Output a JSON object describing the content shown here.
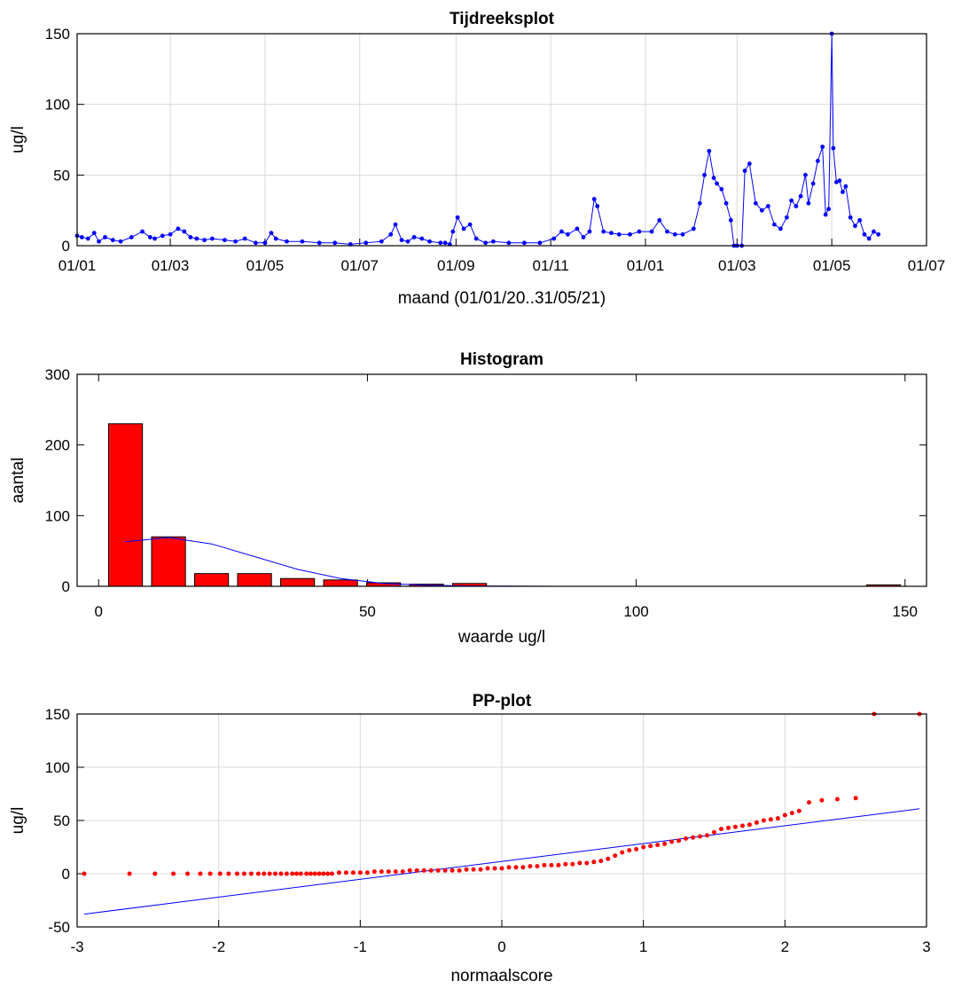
{
  "chart_data": [
    {
      "type": "line",
      "title": "Tijdreeksplot",
      "xlabel": "maand (01/01/20..31/05/21)",
      "ylabel": "ug/l",
      "x_tick_labels": [
        "01/01",
        "01/03",
        "01/05",
        "01/07",
        "01/09",
        "01/11",
        "01/01",
        "01/03",
        "01/05",
        "01/07"
      ],
      "y_ticks": [
        0,
        50,
        100,
        150
      ],
      "xlim": [
        "2020-01-01",
        "2021-07-01"
      ],
      "ylim": [
        0,
        150
      ],
      "grid": true,
      "series_color": "#0000ff",
      "series": [
        {
          "x": [
            "2020-01-01",
            "2020-01-04",
            "2020-01-08",
            "2020-01-12",
            "2020-01-15",
            "2020-01-19",
            "2020-01-24",
            "2020-01-29",
            "2020-02-05",
            "2020-02-12",
            "2020-02-17",
            "2020-02-20",
            "2020-02-25",
            "2020-03-01",
            "2020-03-06",
            "2020-03-10",
            "2020-03-14",
            "2020-03-18",
            "2020-03-23",
            "2020-03-28",
            "2020-04-05",
            "2020-04-12",
            "2020-04-18",
            "2020-04-25",
            "2020-05-01",
            "2020-05-05",
            "2020-05-08",
            "2020-05-15",
            "2020-05-25",
            "2020-06-05",
            "2020-06-15",
            "2020-06-25",
            "2020-07-05",
            "2020-07-15",
            "2020-07-21",
            "2020-07-24",
            "2020-07-28",
            "2020-08-01",
            "2020-08-05",
            "2020-08-10",
            "2020-08-15",
            "2020-08-22",
            "2020-08-25",
            "2020-08-28",
            "2020-08-30",
            "2020-09-02",
            "2020-09-06",
            "2020-09-10",
            "2020-09-14",
            "2020-09-20",
            "2020-09-25",
            "2020-10-05",
            "2020-10-15",
            "2020-10-25",
            "2020-11-03",
            "2020-11-08",
            "2020-11-12",
            "2020-11-18",
            "2020-11-22",
            "2020-11-26",
            "2020-11-29",
            "2020-12-01",
            "2020-12-05",
            "2020-12-10",
            "2020-12-15",
            "2020-12-22",
            "2020-12-28",
            "2021-01-05",
            "2021-01-10",
            "2021-01-15",
            "2021-01-20",
            "2021-01-25",
            "2021-02-01",
            "2021-02-05",
            "2021-02-08",
            "2021-02-11",
            "2021-02-14",
            "2021-02-16",
            "2021-02-19",
            "2021-02-22",
            "2021-02-25",
            "2021-02-27",
            "2021-03-01",
            "2021-03-04",
            "2021-03-06",
            "2021-03-09",
            "2021-03-13",
            "2021-03-17",
            "2021-03-21",
            "2021-03-25",
            "2021-03-29",
            "2021-04-02",
            "2021-04-05",
            "2021-04-08",
            "2021-04-11",
            "2021-04-14",
            "2021-04-16",
            "2021-04-19",
            "2021-04-22",
            "2021-04-25",
            "2021-04-27",
            "2021-04-29",
            "2021-05-01",
            "2021-05-02",
            "2021-05-04",
            "2021-05-06",
            "2021-05-08",
            "2021-05-10",
            "2021-05-13",
            "2021-05-16",
            "2021-05-19",
            "2021-05-22",
            "2021-05-25",
            "2021-05-28",
            "2021-05-31"
          ],
          "y": [
            7,
            6,
            5,
            9,
            3,
            6,
            4,
            3,
            6,
            10,
            6,
            5,
            7,
            8,
            12,
            10,
            6,
            5,
            4,
            5,
            4,
            3,
            5,
            2,
            2,
            9,
            5,
            3,
            3,
            2,
            2,
            1,
            2,
            3,
            8,
            15,
            4,
            3,
            6,
            5,
            3,
            2,
            2,
            1,
            10,
            20,
            12,
            15,
            5,
            2,
            3,
            2,
            2,
            2,
            5,
            10,
            8,
            12,
            6,
            10,
            33,
            28,
            10,
            9,
            8,
            8,
            10,
            10,
            18,
            10,
            8,
            8,
            12,
            30,
            50,
            67,
            48,
            44,
            40,
            30,
            18,
            0,
            0,
            0,
            53,
            58,
            30,
            25,
            28,
            15,
            12,
            20,
            32,
            28,
            35,
            50,
            30,
            44,
            60,
            70,
            22,
            26,
            150,
            69,
            45,
            46,
            38,
            42,
            20,
            14,
            18,
            8,
            5,
            10,
            8
          ]
        }
      ]
    },
    {
      "type": "bar",
      "title": "Histogram",
      "xlabel": "waarde ug/l",
      "ylabel": "aantal",
      "x_ticks": [
        0,
        50,
        100,
        150
      ],
      "y_ticks": [
        0,
        100,
        200,
        300
      ],
      "xlim": [
        -4,
        154
      ],
      "ylim": [
        0,
        300
      ],
      "grid": false,
      "bar_color": "#ff0000",
      "bin_centers": [
        5,
        13,
        21,
        29,
        37,
        45,
        53,
        61,
        69,
        146
      ],
      "bin_width": 6.3,
      "values": [
        230,
        70,
        18,
        18,
        11,
        9,
        5,
        3,
        4,
        2
      ],
      "fit_curve": {
        "color": "#0000ff",
        "x": [
          5,
          13,
          21,
          29,
          37,
          45,
          53,
          61,
          69,
          77,
          85
        ],
        "y": [
          63,
          69,
          60,
          42,
          24,
          11,
          4,
          1.5,
          0.5,
          0.2,
          0
        ]
      }
    },
    {
      "type": "scatter",
      "title": "PP-plot",
      "xlabel": "normaalscore",
      "ylabel": "ug/l",
      "x_ticks": [
        -3,
        -2,
        -1,
        0,
        1,
        2,
        3
      ],
      "y_ticks": [
        -50,
        0,
        50,
        100,
        150
      ],
      "xlim": [
        -3,
        3
      ],
      "ylim": [
        -50,
        150
      ],
      "grid": true,
      "point_color": "#ff0000",
      "points": {
        "x": [
          -2.95,
          -2.63,
          -2.45,
          -2.32,
          -2.22,
          -2.13,
          -2.06,
          -1.99,
          -1.93,
          -1.87,
          -1.82,
          -1.77,
          -1.72,
          -1.68,
          -1.64,
          -1.6,
          -1.56,
          -1.52,
          -1.48,
          -1.45,
          -1.42,
          -1.38,
          -1.35,
          -1.32,
          -1.29,
          -1.26,
          -1.23,
          -1.2,
          -1.15,
          -1.1,
          -1.05,
          -1.0,
          -0.95,
          -0.9,
          -0.85,
          -0.8,
          -0.75,
          -0.7,
          -0.65,
          -0.6,
          -0.55,
          -0.5,
          -0.45,
          -0.4,
          -0.35,
          -0.3,
          -0.25,
          -0.2,
          -0.15,
          -0.1,
          -0.05,
          0.0,
          0.05,
          0.1,
          0.15,
          0.2,
          0.25,
          0.3,
          0.35,
          0.4,
          0.45,
          0.5,
          0.55,
          0.6,
          0.65,
          0.7,
          0.75,
          0.8,
          0.85,
          0.9,
          0.95,
          1.0,
          1.05,
          1.1,
          1.15,
          1.2,
          1.25,
          1.3,
          1.35,
          1.4,
          1.45,
          1.5,
          1.55,
          1.6,
          1.65,
          1.7,
          1.75,
          1.8,
          1.85,
          1.9,
          1.95,
          2.0,
          2.05,
          2.1,
          2.17,
          2.26,
          2.37,
          2.5,
          2.63,
          2.95
        ],
        "y": [
          0,
          0,
          0,
          0,
          0,
          0,
          0,
          0,
          0,
          0,
          0,
          0,
          0,
          0,
          0,
          0,
          0,
          0,
          0,
          0,
          0,
          0,
          0,
          0,
          0,
          0,
          0,
          0,
          1,
          1,
          1,
          1,
          1,
          2,
          2,
          2,
          2,
          2,
          3,
          3,
          3,
          3,
          3,
          3,
          3,
          3,
          4,
          4,
          4,
          5,
          5,
          5,
          6,
          6,
          6,
          7,
          7,
          8,
          8,
          8,
          9,
          9,
          10,
          10,
          11,
          12,
          14,
          17,
          20,
          22,
          23,
          25,
          26,
          27,
          28,
          30,
          31,
          33,
          34,
          35,
          36,
          39,
          42,
          43,
          44,
          45,
          46,
          48,
          50,
          51,
          52,
          55,
          57,
          59,
          67,
          69,
          70,
          71,
          150,
          150
        ]
      },
      "ref_line": {
        "color": "#0000ff",
        "x": [
          -2.95,
          2.95
        ],
        "y": [
          -38,
          61
        ]
      }
    }
  ]
}
